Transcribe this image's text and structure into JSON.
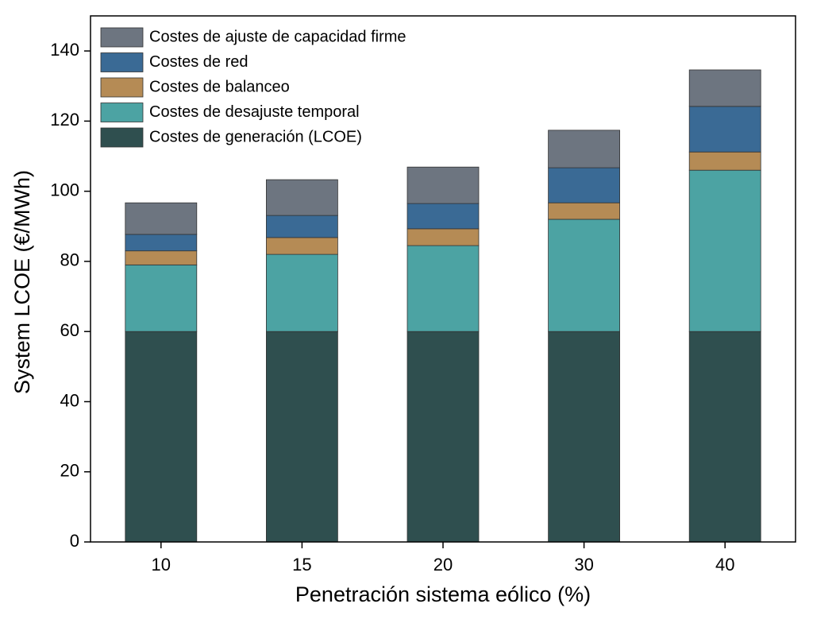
{
  "chart_data": {
    "type": "stacked_bar",
    "x_label": "Penetración sistema eólico (%)",
    "y_label": "System LCOE (€/MWh)",
    "categories": [
      "10",
      "15",
      "20",
      "30",
      "40"
    ],
    "series": [
      {
        "name": "Costes de generación (LCOE)",
        "color": "#2f4f4f",
        "values": [
          60,
          60,
          60,
          60,
          60
        ]
      },
      {
        "name": "Costes de desajuste temporal",
        "color": "#4ca3a3",
        "values": [
          19,
          22,
          24.5,
          32,
          46
        ]
      },
      {
        "name": "Costes de balanceo",
        "color": "#b58b55",
        "values": [
          4,
          4.8,
          4.8,
          4.7,
          5.2
        ]
      },
      {
        "name": "Costes de red",
        "color": "#3a6a95",
        "values": [
          4.7,
          6.3,
          7.2,
          10,
          13
        ]
      },
      {
        "name": "Costes de ajuste de capacidad firme",
        "color": "#6d7580",
        "values": [
          9,
          10.2,
          10.4,
          10.7,
          10.4
        ]
      }
    ],
    "ylim": [
      0,
      150
    ],
    "yticks": [
      0,
      20,
      40,
      60,
      80,
      100,
      120,
      140
    ],
    "legend": "upper left"
  }
}
